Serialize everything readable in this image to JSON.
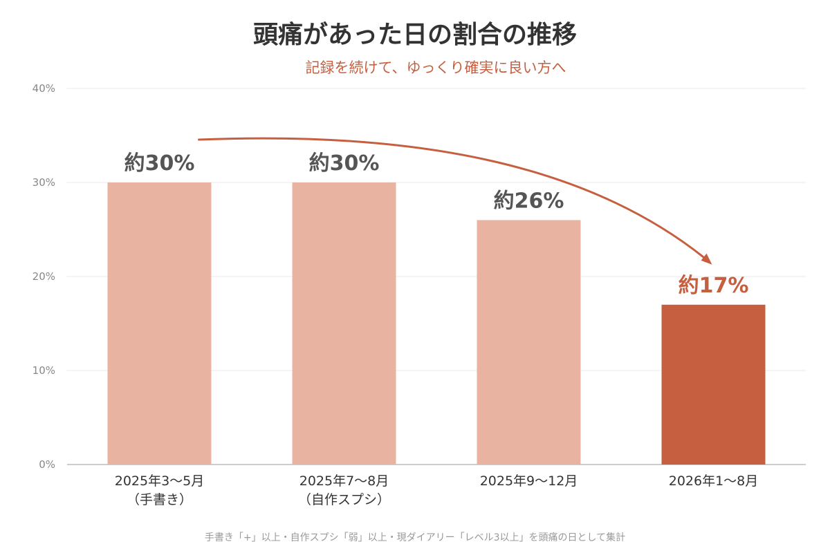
{
  "chart_data": {
    "type": "bar",
    "title": "頭痛があった日の割合の推移",
    "subtitle": "記録を続けて、ゆっくり確実に良い方へ",
    "xlabel": "",
    "ylabel": "",
    "ylim": [
      0,
      40
    ],
    "y_ticks": [
      0,
      10,
      20,
      30,
      40
    ],
    "y_tick_labels": [
      "0%",
      "10%",
      "20%",
      "30%",
      "40%"
    ],
    "grid": true,
    "categories": [
      [
        "2025年3〜5月",
        "（手書き）"
      ],
      [
        "2025年7〜8月",
        "（自作スプシ）"
      ],
      [
        "2025年9〜12月"
      ],
      [
        "2026年1〜8月"
      ]
    ],
    "values": [
      30,
      30,
      26,
      17
    ],
    "data_labels": [
      "約30%",
      "約30%",
      "約26%",
      "約17%"
    ],
    "highlight_index": 3,
    "annotations": [
      {
        "type": "trend-arrow",
        "from_category": 0,
        "to_category": 3
      }
    ],
    "footnote": "手書き「+」以上・自作スプシ「弱」以上・現ダイアリー「レベル3以上」を頭痛の日として集計"
  },
  "colors": {
    "bar": "#e8b4a1",
    "highlight": "#c65f3f",
    "accent": "#c65f3f",
    "title": "#333333",
    "data_label": "#555555",
    "axis_tick": "#888888",
    "category_label": "#333333",
    "grid": "#e8e8e8",
    "axis": "#bbbbbb",
    "footnote": "#999999"
  }
}
